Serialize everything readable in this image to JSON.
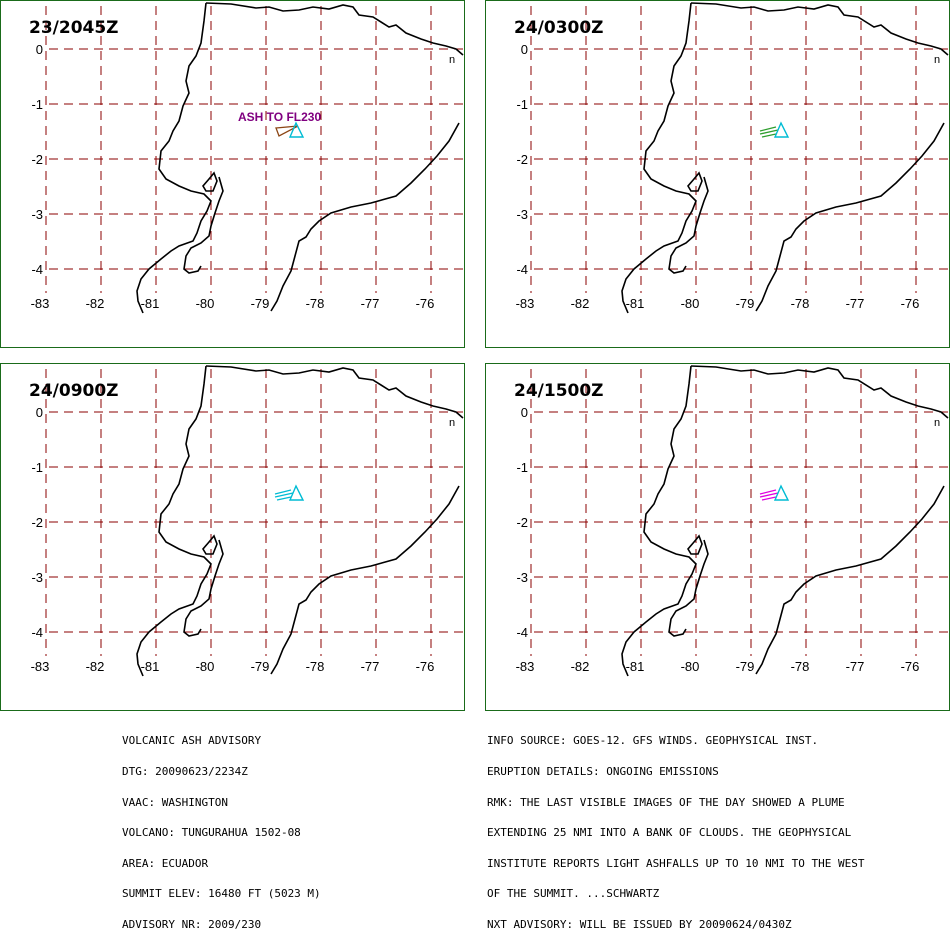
{
  "colors": {
    "grid": "#8b0000",
    "coast": "#000000",
    "ash_obs": "#8b4513",
    "ash_f6": "#2e9e2e",
    "ash_f12": "#00bcd4",
    "ash_f18": "#e000e0",
    "volcano": "#00bcd4",
    "fl_label": "#800080"
  },
  "map": {
    "lat_labels": [
      "0",
      "-1",
      "-2",
      "-3",
      "-4"
    ],
    "lon_labels": [
      "-83",
      "-82",
      "-81",
      "-80",
      "-79",
      "-78",
      "-77",
      "-76"
    ],
    "extra_label": "n",
    "volcano_icon": "volcano-triangle"
  },
  "panels": [
    {
      "time": "23/2045Z",
      "ash_label": "ASH TO FL230",
      "ash_type": "observed"
    },
    {
      "time": "24/0300Z",
      "ash_label": "",
      "ash_type": "forecast-6hr"
    },
    {
      "time": "24/0900Z",
      "ash_label": "",
      "ash_type": "forecast-12hr"
    },
    {
      "time": "24/1500Z",
      "ash_label": "",
      "ash_type": "forecast-18hr"
    }
  ],
  "advisory_left": [
    "VOLCANIC ASH ADVISORY",
    "DTG: 20090623/2234Z",
    "VAAC: WASHINGTON",
    "VOLCANO: TUNGURAHUA 1502-08",
    "AREA: ECUADOR",
    "SUMMIT ELEV: 16480 FT (5023 M)",
    "ADVISORY NR: 2009/230"
  ],
  "advisory_right": [
    "INFO SOURCE: GOES-12. GFS WINDS. GEOPHYSICAL INST.",
    "ERUPTION DETAILS: ONGOING EMISSIONS",
    "RMK: THE LAST VISIBLE IMAGES OF THE DAY SHOWED A PLUME",
    "EXTENDING 25 NMI INTO A BANK OF CLOUDS. THE GEOPHYSICAL",
    "INSTITUTE REPORTS LIGHT ASHFALLS UP TO 10 NMI TO THE WEST",
    "OF THE SUMMIT. ...SCHWARTZ",
    "NXT ADVISORY: WILL BE ISSUED BY 20090624/0430Z"
  ]
}
